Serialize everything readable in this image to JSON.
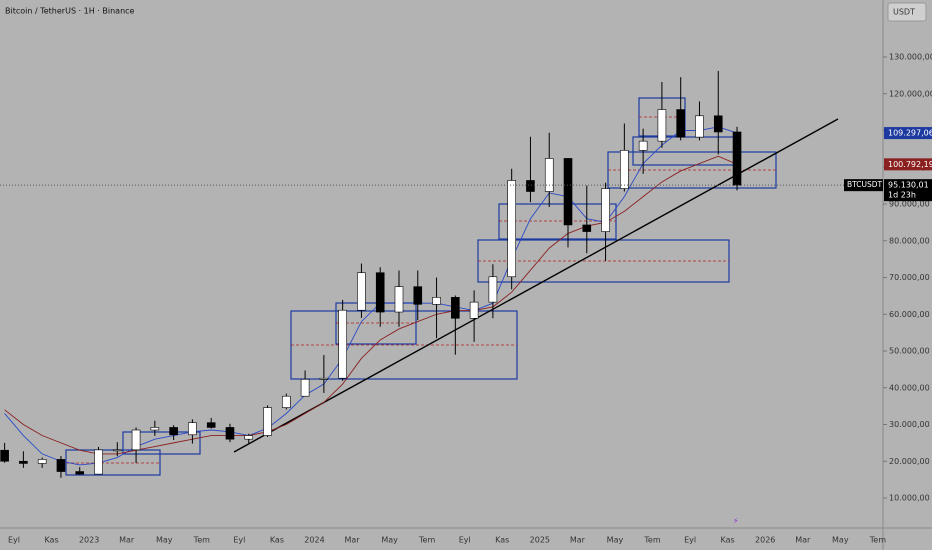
{
  "chart_data": {
    "type": "candlestick",
    "title": "Bitcoin / TetherUS · 1H · Binance",
    "currency": "USDT",
    "symbol": "BTCUSDT",
    "countdown": "1d 23h",
    "x_labels": [
      "Eyl",
      "Kas",
      "2023",
      "Mar",
      "May",
      "Tem",
      "Eyl",
      "Kas",
      "2024",
      "Mar",
      "May",
      "Tem",
      "Eyl",
      "Kas",
      "2025",
      "Mar",
      "May",
      "Tem",
      "Eyl",
      "Kas",
      "2026",
      "Mar",
      "May",
      "Tem"
    ],
    "ylim": [
      0,
      140000
    ],
    "yticks": [
      {
        "value": 10000,
        "label": "10.000,00"
      },
      {
        "value": 20000,
        "label": "20.000,00"
      },
      {
        "value": 30000,
        "label": "30.000,00"
      },
      {
        "value": 40000,
        "label": "40.000,00"
      },
      {
        "value": 50000,
        "label": "50.000,00"
      },
      {
        "value": 60000,
        "label": "60.000,00"
      },
      {
        "value": 70000,
        "label": "70.000,00"
      },
      {
        "value": 80000,
        "label": "80.000,00"
      },
      {
        "value": 90000,
        "label": "90.000,00"
      },
      {
        "value": 100000,
        "label": "100.000,00"
      },
      {
        "value": 110000,
        "label": "110.000,00"
      },
      {
        "value": 120000,
        "label": "120.000,00"
      },
      {
        "value": 130000,
        "label": "130.000,00"
      }
    ],
    "up_color": "#ffffff",
    "down_color": "#000000",
    "candles": [
      {
        "open": 23000,
        "high": 25000,
        "low": 19600,
        "close": 20000
      },
      {
        "open": 20000,
        "high": 22700,
        "low": 18200,
        "close": 19400
      },
      {
        "open": 19400,
        "high": 21000,
        "low": 18200,
        "close": 20500
      },
      {
        "open": 20500,
        "high": 21400,
        "low": 15500,
        "close": 17200
      },
      {
        "open": 17200,
        "high": 18400,
        "low": 16300,
        "close": 16500
      },
      {
        "open": 16500,
        "high": 23900,
        "low": 16500,
        "close": 23100
      },
      {
        "open": 23100,
        "high": 25200,
        "low": 21400,
        "close": 23100
      },
      {
        "open": 23100,
        "high": 29200,
        "low": 19500,
        "close": 28500
      },
      {
        "open": 28500,
        "high": 31000,
        "low": 26900,
        "close": 29200
      },
      {
        "open": 29200,
        "high": 29800,
        "low": 25800,
        "close": 27200
      },
      {
        "open": 27200,
        "high": 31400,
        "low": 24800,
        "close": 30500
      },
      {
        "open": 30500,
        "high": 31800,
        "low": 28900,
        "close": 29200
      },
      {
        "open": 29200,
        "high": 30200,
        "low": 25200,
        "close": 26000
      },
      {
        "open": 26000,
        "high": 27500,
        "low": 24900,
        "close": 27000
      },
      {
        "open": 27000,
        "high": 35200,
        "low": 26600,
        "close": 34600
      },
      {
        "open": 34600,
        "high": 38400,
        "low": 34100,
        "close": 37700
      },
      {
        "open": 37700,
        "high": 44700,
        "low": 37600,
        "close": 42300
      },
      {
        "open": 42300,
        "high": 48900,
        "low": 38600,
        "close": 42600
      },
      {
        "open": 42600,
        "high": 63900,
        "low": 41900,
        "close": 61100
      },
      {
        "open": 61100,
        "high": 73800,
        "low": 59000,
        "close": 71300
      },
      {
        "open": 71300,
        "high": 72800,
        "low": 56600,
        "close": 60600
      },
      {
        "open": 60600,
        "high": 71900,
        "low": 56600,
        "close": 67500
      },
      {
        "open": 67500,
        "high": 71900,
        "low": 58400,
        "close": 62700
      },
      {
        "open": 62700,
        "high": 70000,
        "low": 53500,
        "close": 64600
      },
      {
        "open": 64600,
        "high": 65100,
        "low": 49000,
        "close": 58900
      },
      {
        "open": 58900,
        "high": 66500,
        "low": 52500,
        "close": 63300
      },
      {
        "open": 63300,
        "high": 73600,
        "low": 58900,
        "close": 70200
      },
      {
        "open": 70200,
        "high": 99600,
        "low": 66800,
        "close": 96400
      },
      {
        "open": 96400,
        "high": 108300,
        "low": 90500,
        "close": 93400
      },
      {
        "open": 93400,
        "high": 109400,
        "low": 89200,
        "close": 102400
      },
      {
        "open": 102400,
        "high": 102500,
        "low": 78200,
        "close": 84300
      },
      {
        "open": 84300,
        "high": 95000,
        "low": 76600,
        "close": 82500
      },
      {
        "open": 82500,
        "high": 95800,
        "low": 74500,
        "close": 94200
      },
      {
        "open": 94200,
        "high": 111900,
        "low": 93400,
        "close": 104600
      },
      {
        "open": 104600,
        "high": 110500,
        "low": 98200,
        "close": 107100
      },
      {
        "open": 107100,
        "high": 123200,
        "low": 105300,
        "close": 115700
      },
      {
        "open": 115700,
        "high": 124500,
        "low": 107300,
        "close": 108200
      },
      {
        "open": 108200,
        "high": 117900,
        "low": 107300,
        "close": 114000
      },
      {
        "open": 114000,
        "high": 126200,
        "low": 103500,
        "close": 109600
      },
      {
        "open": 109600,
        "high": 111000,
        "low": 93700,
        "close": 95130.01
      }
    ],
    "series": [
      {
        "name": "MA fast",
        "color": "#2a49c8",
        "values": [
          33000,
          27000,
          22000,
          20000,
          19000,
          19500,
          21000,
          24000,
          26000,
          27000,
          28000,
          28500,
          28000,
          27000,
          29000,
          33000,
          38000,
          41000,
          48000,
          58000,
          63000,
          63000,
          63000,
          63000,
          62000,
          61000,
          63000,
          75000,
          86000,
          93000,
          92000,
          86000,
          85000,
          92000,
          101000,
          106000,
          110000,
          110000,
          111000,
          109297.06
        ]
      },
      {
        "name": "MA slow",
        "color": "#8b2020",
        "values": [
          34000,
          30000,
          27000,
          25000,
          23000,
          22000,
          22000,
          23000,
          24000,
          25000,
          26000,
          27000,
          27000,
          27000,
          28000,
          30000,
          33000,
          36000,
          41000,
          48000,
          53000,
          56000,
          58000,
          60000,
          61000,
          61000,
          62000,
          66000,
          72000,
          78000,
          82000,
          84000,
          85000,
          88000,
          92000,
          96000,
          99000,
          101000,
          103000,
          100792.19
        ]
      }
    ],
    "price_tags": [
      {
        "value": 109297.06,
        "label": "109.297,06",
        "color": "#1c3aa0"
      },
      {
        "value": 100792.19,
        "label": "100.792,19",
        "color": "#8b2020"
      },
      {
        "value": 95130.01,
        "label": "95.130,01",
        "color": "#000000"
      }
    ]
  }
}
